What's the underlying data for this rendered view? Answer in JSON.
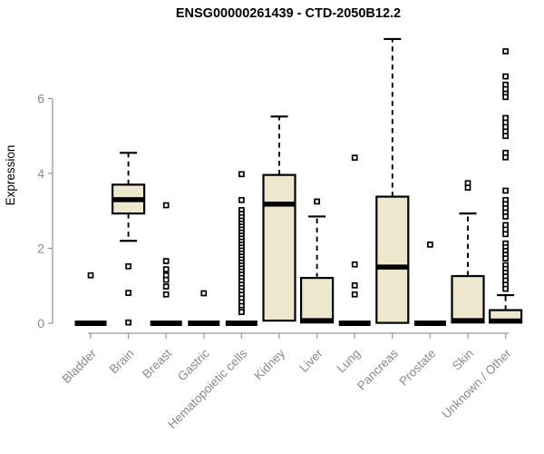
{
  "header": {
    "title": "ENSG00000261439 - CTD-2050B12.2"
  },
  "chart_data": {
    "type": "boxplot",
    "title": "ENSG00000261439 - CTD-2050B12.2",
    "xlabel": "",
    "ylabel": "Expression",
    "yticks": [
      0,
      2,
      4,
      6
    ],
    "ylim": [
      0,
      7.8
    ],
    "grid": false,
    "legend": false,
    "categories": [
      "Bladder",
      "Brain",
      "Breast",
      "Gastric",
      "Hematopoietic cells",
      "Kidney",
      "Liver",
      "Lung",
      "Pancreas",
      "Prostate",
      "Skin",
      "Unknown / Other"
    ],
    "series": [
      {
        "name": "Bladder",
        "flat": true,
        "median": 0,
        "outliers": [
          1.28
        ]
      },
      {
        "name": "Brain",
        "flat": false,
        "low": 2.2,
        "q1": 2.93,
        "median": 3.3,
        "q3": 3.7,
        "high": 4.55,
        "outliers": [
          1.52,
          0.81,
          0.02
        ]
      },
      {
        "name": "Breast",
        "flat": true,
        "median": 0,
        "outliers": [
          3.15,
          1.66,
          1.44,
          1.28,
          1.16,
          0.98,
          0.77
        ]
      },
      {
        "name": "Gastric",
        "flat": true,
        "median": 0,
        "outliers": [
          0.8
        ]
      },
      {
        "name": "Hematopoietic cells",
        "flat": true,
        "median": 0,
        "outliers": [
          3.98,
          3.29,
          3.02,
          2.92,
          2.83,
          2.74,
          2.66,
          2.58,
          2.5,
          2.42,
          2.34,
          2.26,
          2.18,
          2.1,
          2.02,
          1.94,
          1.86,
          1.78,
          1.7,
          1.62,
          1.54,
          1.46,
          1.38,
          1.3,
          1.21,
          1.12,
          1.03,
          0.94,
          0.85,
          0.76,
          0.66,
          0.56,
          0.46,
          0.36,
          0.3
        ]
      },
      {
        "name": "Kidney",
        "flat": false,
        "low": null,
        "q1": 0.07,
        "median": 3.18,
        "q3": 3.96,
        "high": 5.52,
        "outliers": []
      },
      {
        "name": "Liver",
        "flat": false,
        "low": null,
        "q1": 0.02,
        "median": 0.07,
        "q3": 1.21,
        "high": 2.85,
        "outliers": [
          3.25
        ]
      },
      {
        "name": "Lung",
        "flat": true,
        "median": 0,
        "outliers": [
          4.42,
          1.57,
          1.01,
          0.77
        ]
      },
      {
        "name": "Pancreas",
        "flat": false,
        "low": null,
        "q1": 0.01,
        "median": 1.5,
        "q3": 3.38,
        "high": 7.59,
        "outliers": []
      },
      {
        "name": "Prostate",
        "flat": true,
        "median": 0,
        "outliers": [
          2.1
        ]
      },
      {
        "name": "Skin",
        "flat": false,
        "low": null,
        "q1": 0.02,
        "median": 0.07,
        "q3": 1.26,
        "high": 2.93,
        "outliers": [
          3.74,
          3.62
        ]
      },
      {
        "name": "Unknown / Other",
        "flat": false,
        "low": null,
        "q1": 0.02,
        "median": 0.06,
        "q3": 0.35,
        "high": 0.75,
        "outliers": [
          7.26,
          6.59,
          6.37,
          6.25,
          6.13,
          6.04,
          5.48,
          5.36,
          5.24,
          5.12,
          5.0,
          4.55,
          4.43,
          3.54,
          3.29,
          3.18,
          3.07,
          2.96,
          2.85,
          2.62,
          2.5,
          2.38,
          2.13,
          2.03,
          1.93,
          1.83,
          1.73,
          1.55,
          1.45,
          1.35,
          1.25,
          1.14,
          1.03,
          0.92
        ]
      }
    ],
    "colors": {
      "box_fill": "#EDE8CD",
      "box_border": "#000000",
      "median": "#000000",
      "whisker": "#000000",
      "outlier_fill": "#ffffff",
      "axis_line": "#9b9b9b",
      "tick_text": "#8a8a8a",
      "title_text": "#000000",
      "background": "#ffffff"
    }
  }
}
